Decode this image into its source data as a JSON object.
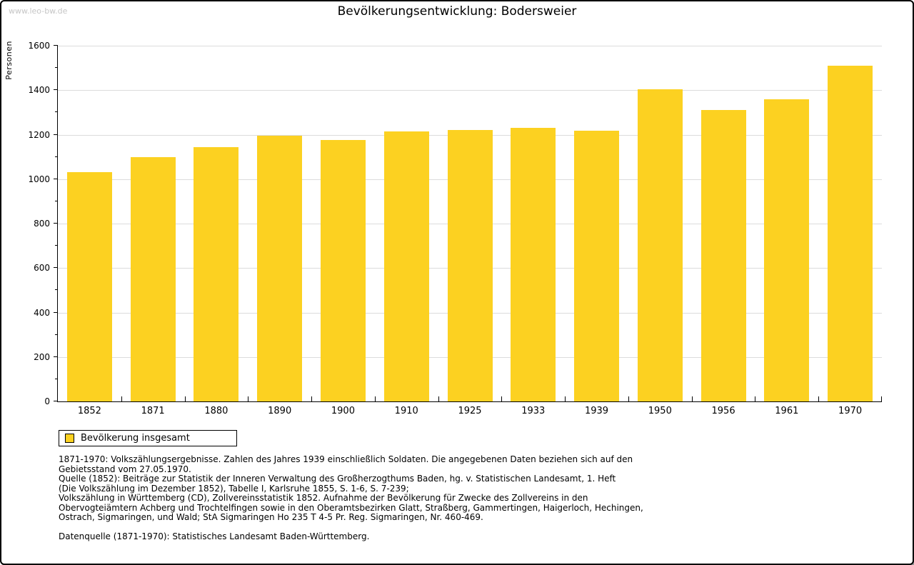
{
  "page": {
    "watermark": "www.leo-bw.de",
    "title": "Bevölkerungsentwicklung: Bodersweier"
  },
  "chart_data": {
    "type": "bar",
    "title": "Bevölkerungsentwicklung: Bodersweier",
    "xlabel": "",
    "ylabel": "Personen",
    "categories": [
      "1852",
      "1871",
      "1880",
      "1890",
      "1900",
      "1910",
      "1925",
      "1933",
      "1939",
      "1950",
      "1956",
      "1961",
      "1970"
    ],
    "series": [
      {
        "name": "Bevölkerung insgesamt",
        "values": [
          1030,
          1100,
          1145,
          1195,
          1175,
          1213,
          1222,
          1231,
          1217,
          1405,
          1310,
          1360,
          1510
        ]
      }
    ],
    "ylim": [
      0,
      1600
    ],
    "ytick_major_step": 200,
    "ytick_minor_step": 100,
    "grid": true,
    "legend_position": "bottom-left"
  },
  "legend": {
    "items": [
      {
        "label": "Bevölkerung insgesamt",
        "color": "#FCD121"
      }
    ]
  },
  "footnotes": {
    "lines": [
      "1871-1970: Volkszählungsergebnisse. Zahlen des Jahres 1939 einschließlich Soldaten. Die angegebenen Daten beziehen sich auf den",
      "Gebietsstand vom 27.05.1970.",
      "Quelle (1852): Beiträge zur Statistik der Inneren Verwaltung des Großherzogthums Baden, hg. v. Statistischen Landesamt, 1. Heft",
      "(Die Volkszählung im Dezember 1852), Tabelle I, Karlsruhe 1855, S. 1-6, S. 7-239;",
      "Volkszählung in Württemberg (CD), Zollvereinsstatistik 1852. Aufnahme der Bevölkerung für Zwecke des Zollvereins in den",
      "Obervogteiämtern Achberg und Trochtelfingen sowie in den Oberamtsbezirken Glatt, Straßberg, Gammertingen, Haigerloch, Hechingen,",
      "Ostrach, Sigmaringen, und Wald; StA Sigmaringen Ho 235 T 4-5 Pr. Reg. Sigmaringen, Nr. 460-469."
    ],
    "datasource": "Datenquelle (1871-1970): Statistisches Landesamt Baden-Württemberg."
  },
  "colors": {
    "bar": "#FCD121",
    "grid": "#DCDCDC",
    "axis": "#000000",
    "watermark": "#C6C6C6"
  }
}
